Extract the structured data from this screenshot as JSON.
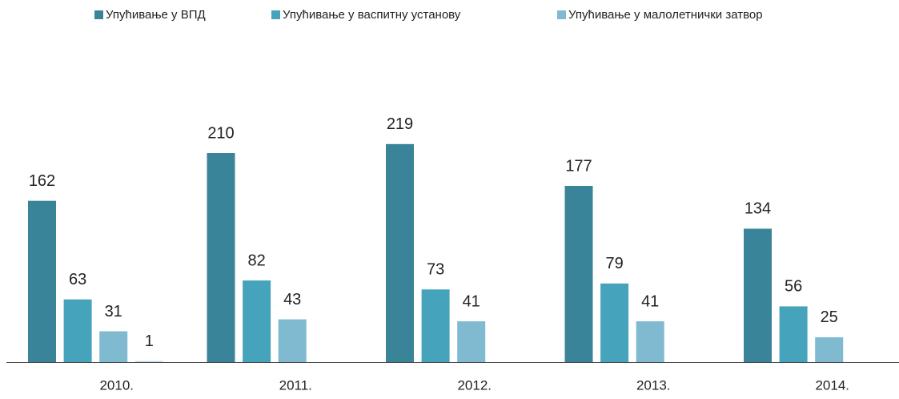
{
  "chart_data": {
    "type": "bar",
    "categories": [
      "2010.",
      "2011.",
      "2012.",
      "2013.",
      "2014."
    ],
    "series": [
      {
        "name": "Упућивање у ВПД",
        "color": "#3a8499",
        "values": [
          162,
          210,
          219,
          177,
          134
        ]
      },
      {
        "name": "Упућивање у васпитну установу",
        "color": "#46a3bc",
        "values": [
          63,
          82,
          73,
          79,
          56
        ]
      },
      {
        "name": "Упућивање у малолетнички затвор",
        "color": "#7fbad0",
        "values": [
          31,
          43,
          41,
          41,
          25
        ]
      },
      {
        "color": "#b7d7e2",
        "values": [
          1,
          null,
          null,
          null,
          null
        ]
      }
    ],
    "ylim": [
      0,
      350
    ]
  }
}
